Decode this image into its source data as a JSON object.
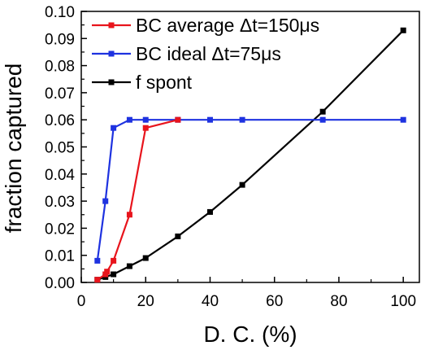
{
  "chart_data": {
    "type": "line",
    "title": "",
    "xlabel": "D. C. (%)",
    "ylabel": "fraction captured",
    "xlim": [
      0,
      105
    ],
    "ylim": [
      0.0,
      0.1
    ],
    "x_ticks": [
      0,
      20,
      40,
      60,
      80,
      100
    ],
    "y_ticks": [
      0.0,
      0.01,
      0.02,
      0.03,
      0.04,
      0.05,
      0.06,
      0.07,
      0.08,
      0.09,
      0.1
    ],
    "x_tick_labels": [
      "0",
      "20",
      "40",
      "60",
      "80",
      "100"
    ],
    "y_tick_labels": [
      "0.00",
      "0.01",
      "0.02",
      "0.03",
      "0.04",
      "0.05",
      "0.06",
      "0.07",
      "0.08",
      "0.09",
      "0.10"
    ],
    "grid": false,
    "legend_position": "top-left",
    "series": [
      {
        "name": "BC average Δt=150μs",
        "color": "#e8141c",
        "x": [
          5,
          7.5,
          8,
          10,
          15,
          20,
          30
        ],
        "y": [
          0.001,
          0.003,
          0.004,
          0.008,
          0.025,
          0.057,
          0.06
        ]
      },
      {
        "name": "BC ideal Δt=75μs",
        "color": "#1e32e0",
        "x": [
          5,
          7.5,
          10,
          15,
          20,
          30,
          40,
          50,
          75,
          100
        ],
        "y": [
          0.008,
          0.03,
          0.057,
          0.06,
          0.06,
          0.06,
          0.06,
          0.06,
          0.06,
          0.06
        ]
      },
      {
        "name": "f spont",
        "color": "#000000",
        "x": [
          5,
          7.5,
          10,
          15,
          20,
          30,
          40,
          50,
          75,
          100
        ],
        "y": [
          0.001,
          0.002,
          0.003,
          0.006,
          0.009,
          0.017,
          0.026,
          0.036,
          0.063,
          0.093
        ]
      }
    ]
  }
}
